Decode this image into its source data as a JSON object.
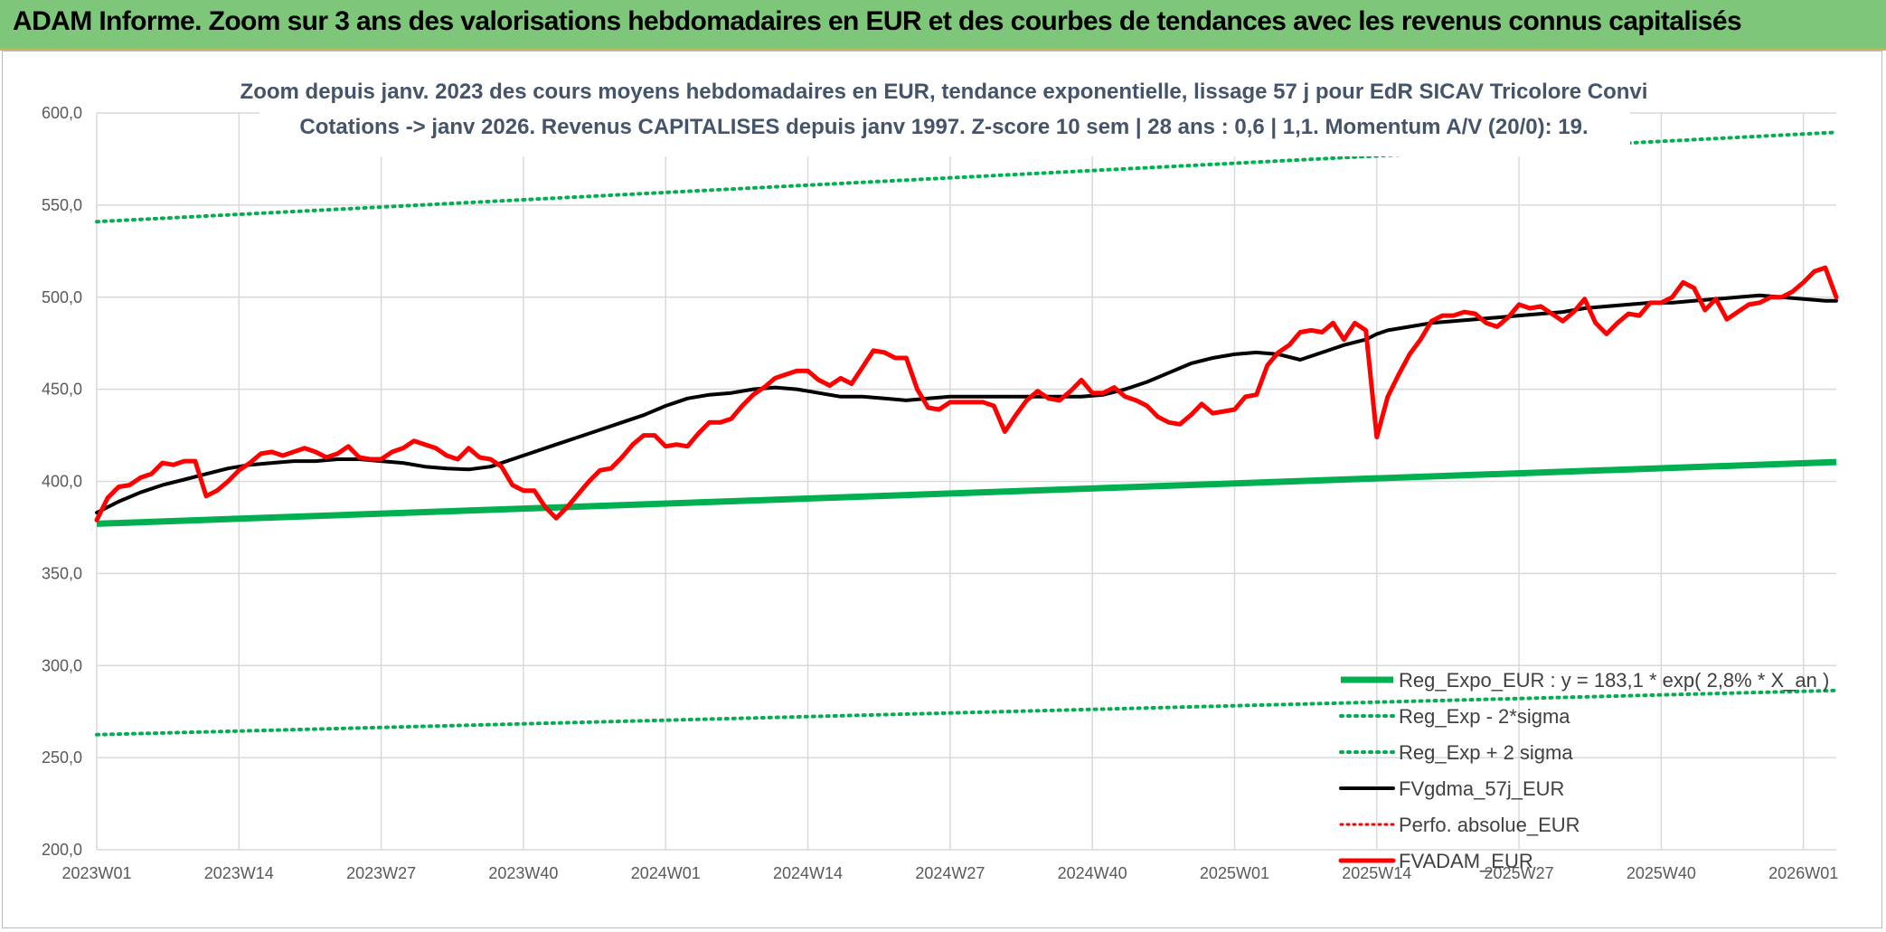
{
  "banner": {
    "title": "ADAM Informe. Zoom sur 3 ans des valorisations hebdomadaires en EUR et des courbes de tendances avec les revenus connus capitalisés"
  },
  "colors": {
    "banner_bg": "#7ec77a",
    "reg_expo": "#00b050",
    "sigma_bands": "#00b050",
    "fvgdma": "#000000",
    "perfo": "#ff0000",
    "fvadam": "#ff0000",
    "title_text": "#44546a"
  },
  "chart_data": {
    "type": "line",
    "title": [
      "Zoom depuis janv. 2023 des cours moyens hebdomadaires en EUR, tendance exponentielle, lissage 57 j pour EdR SICAV Tricolore Convi",
      "Cotations -> janv 2026. Revenus CAPITALISES depuis janv 1997. Z-score 10 sem | 28 ans : 0,6 | 1,1. Momentum A/V (20/0): 19."
    ],
    "xlabel": "",
    "ylabel": "",
    "ylim": [
      200,
      600
    ],
    "yticks": [
      "200,0",
      "250,0",
      "300,0",
      "350,0",
      "400,0",
      "450,0",
      "500,0",
      "550,0",
      "600,0"
    ],
    "x_range_weeks": [
      0,
      159
    ],
    "xticks": [
      {
        "label": "2023W01",
        "week": 0
      },
      {
        "label": "2023W14",
        "week": 13
      },
      {
        "label": "2023W27",
        "week": 26
      },
      {
        "label": "2023W40",
        "week": 39
      },
      {
        "label": "2024W01",
        "week": 52
      },
      {
        "label": "2024W14",
        "week": 65
      },
      {
        "label": "2024W27",
        "week": 78
      },
      {
        "label": "2024W40",
        "week": 91
      },
      {
        "label": "2025W01",
        "week": 104
      },
      {
        "label": "2025W14",
        "week": 117
      },
      {
        "label": "2025W27",
        "week": 130
      },
      {
        "label": "2025W40",
        "week": 143
      },
      {
        "label": "2026W01",
        "week": 156
      }
    ],
    "grid": true,
    "legend_position": "bottom-right",
    "series": [
      {
        "name": "Reg_Expo_EUR : y = 183,1 * exp( 2,8% *  X_an )",
        "style": "thick-solid",
        "weeks": [
          0,
          159
        ],
        "values": [
          377.0,
          410.5
        ]
      },
      {
        "name": "Reg_Exp - 2*sigma",
        "style": "dotted",
        "weeks": [
          0,
          159
        ],
        "values": [
          262.5,
          286.5
        ]
      },
      {
        "name": "Reg_Exp + 2 sigma",
        "style": "dotted",
        "weeks": [
          0,
          159
        ],
        "values": [
          541.0,
          589.5
        ]
      },
      {
        "name": "FVgdma_57j_EUR",
        "style": "solid",
        "weeks": [
          0,
          2,
          4,
          6,
          8,
          10,
          12,
          14,
          16,
          18,
          20,
          22,
          24,
          26,
          28,
          30,
          32,
          34,
          36,
          38,
          40,
          42,
          44,
          46,
          48,
          50,
          52,
          54,
          56,
          58,
          60,
          62,
          64,
          66,
          68,
          70,
          72,
          74,
          76,
          78,
          80,
          82,
          84,
          86,
          88,
          90,
          92,
          94,
          96,
          98,
          100,
          102,
          104,
          106,
          108,
          110,
          112,
          114,
          116,
          117,
          118,
          120,
          122,
          124,
          126,
          128,
          130,
          132,
          134,
          136,
          138,
          140,
          142,
          144,
          146,
          148,
          150,
          152,
          154,
          156,
          158,
          159
        ],
        "values": [
          383,
          389,
          394,
          398,
          401,
          404,
          407,
          409,
          410,
          411,
          411,
          412,
          412,
          411,
          410,
          408,
          407,
          406.5,
          408,
          412,
          416,
          420,
          424,
          428,
          432,
          436,
          441,
          445,
          447,
          448,
          450,
          451,
          450,
          448,
          446,
          446,
          445,
          444,
          445,
          446,
          446,
          446,
          446,
          446,
          446,
          446,
          447,
          450,
          454,
          459,
          464,
          467,
          469,
          470,
          469,
          466,
          470,
          474,
          477,
          480,
          482,
          484,
          486,
          487,
          488,
          489,
          490,
          491,
          492,
          494,
          495,
          496,
          497,
          497,
          498,
          499,
          500,
          501,
          500,
          499,
          498,
          498
        ]
      },
      {
        "name": "Perfo. absolue_EUR",
        "style": "dotted",
        "weeks": [],
        "values": []
      },
      {
        "name": "FVADAM_EUR",
        "style": "solid",
        "weeks": [
          0,
          1,
          2,
          3,
          4,
          5,
          6,
          7,
          8,
          9,
          10,
          11,
          12,
          13,
          14,
          15,
          16,
          17,
          18,
          19,
          20,
          21,
          22,
          23,
          24,
          25,
          26,
          27,
          28,
          29,
          30,
          31,
          32,
          33,
          34,
          35,
          36,
          37,
          38,
          39,
          40,
          41,
          42,
          43,
          44,
          45,
          46,
          47,
          48,
          49,
          50,
          51,
          52,
          53,
          54,
          55,
          56,
          57,
          58,
          59,
          60,
          61,
          62,
          63,
          64,
          65,
          66,
          67,
          68,
          69,
          70,
          71,
          72,
          73,
          74,
          75,
          76,
          77,
          78,
          79,
          80,
          81,
          82,
          83,
          84,
          85,
          86,
          87,
          88,
          89,
          90,
          91,
          92,
          93,
          94,
          95,
          96,
          97,
          98,
          99,
          100,
          101,
          102,
          103,
          104,
          105,
          106,
          107,
          108,
          109,
          110,
          111,
          112,
          113,
          114,
          115,
          116,
          117,
          118,
          119,
          120,
          121,
          122,
          123,
          124,
          125,
          126,
          127,
          128,
          129,
          130,
          131,
          132,
          133,
          134,
          135,
          136,
          137,
          138,
          139,
          140,
          141,
          142,
          143,
          144,
          145,
          146,
          147,
          148,
          149,
          150,
          151,
          152,
          153,
          154,
          155,
          156,
          157,
          158,
          159
        ],
        "values": [
          379,
          391,
          397,
          398,
          402,
          404,
          410,
          409,
          411,
          411,
          392,
          395,
          400,
          406,
          410,
          415,
          416,
          414,
          416,
          418,
          416,
          413,
          415,
          419,
          413,
          412,
          412,
          416,
          418,
          422,
          420,
          418,
          414,
          412,
          418,
          413,
          412,
          408,
          398,
          395,
          395,
          386,
          380,
          386,
          393,
          400,
          406,
          407,
          413,
          420,
          425,
          425,
          419,
          420,
          419,
          426,
          432,
          432,
          434,
          441,
          447,
          451,
          456,
          458,
          460,
          460,
          455,
          452,
          456,
          453,
          462,
          471,
          470,
          467,
          467,
          450,
          440,
          439,
          443,
          443,
          443,
          443,
          441,
          427,
          436,
          444,
          449,
          445,
          444,
          449,
          455,
          448,
          448,
          451,
          446,
          444,
          441,
          435,
          432,
          431,
          436,
          442,
          437,
          438,
          439,
          446,
          447,
          463,
          470,
          474,
          481,
          482,
          481,
          486,
          477,
          486,
          482,
          424,
          446,
          458,
          469,
          477,
          487,
          490,
          490,
          492,
          491,
          486,
          484,
          489,
          496,
          494,
          495,
          491,
          487,
          492,
          499,
          486,
          480,
          486,
          491,
          490,
          497,
          497,
          500,
          508,
          505,
          493,
          499,
          488,
          492,
          496,
          497,
          500,
          500,
          503,
          508,
          514,
          516,
          500
        ]
      }
    ]
  }
}
